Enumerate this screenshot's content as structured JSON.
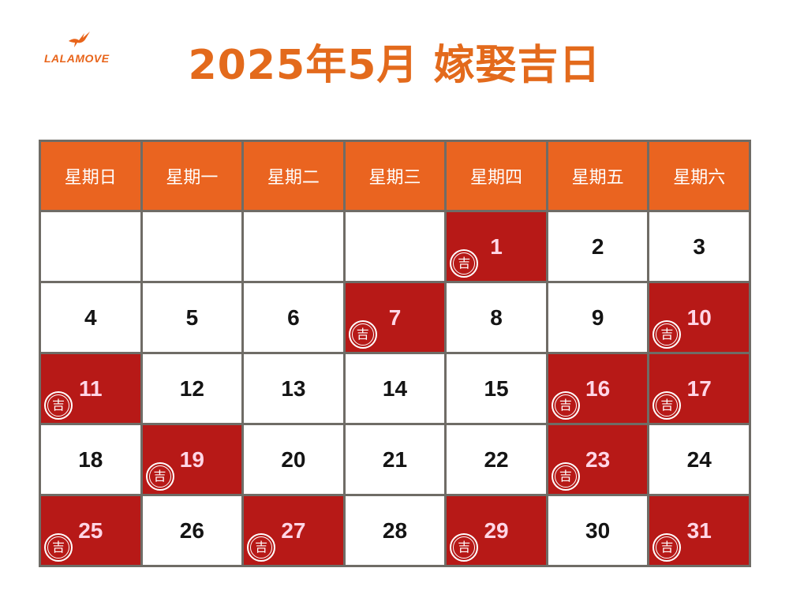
{
  "brand": {
    "name": "LALAMOVE",
    "logo_icon": "hummingbird-icon",
    "color": "#e8641a"
  },
  "title": "2025年5月 嫁娶吉日",
  "colors": {
    "title": "#e36a1c",
    "header_bg": "#ea6420",
    "auspicious_bg": "#b71917",
    "grid_line": "#6f6c66"
  },
  "weekdays": [
    "星期日",
    "星期一",
    "星期二",
    "星期三",
    "星期四",
    "星期五",
    "星期六"
  ],
  "stamp_label": "吉",
  "start_weekday_index": 4,
  "days": [
    {
      "date": "1",
      "auspicious": true
    },
    {
      "date": "2",
      "auspicious": false
    },
    {
      "date": "3",
      "auspicious": false
    },
    {
      "date": "4",
      "auspicious": false
    },
    {
      "date": "5",
      "auspicious": false
    },
    {
      "date": "6",
      "auspicious": false
    },
    {
      "date": "7",
      "auspicious": true
    },
    {
      "date": "8",
      "auspicious": false
    },
    {
      "date": "9",
      "auspicious": false
    },
    {
      "date": "10",
      "auspicious": true
    },
    {
      "date": "11",
      "auspicious": true
    },
    {
      "date": "12",
      "auspicious": false
    },
    {
      "date": "13",
      "auspicious": false
    },
    {
      "date": "14",
      "auspicious": false
    },
    {
      "date": "15",
      "auspicious": false
    },
    {
      "date": "16",
      "auspicious": true
    },
    {
      "date": "17",
      "auspicious": true
    },
    {
      "date": "18",
      "auspicious": false
    },
    {
      "date": "19",
      "auspicious": true
    },
    {
      "date": "20",
      "auspicious": false
    },
    {
      "date": "21",
      "auspicious": false
    },
    {
      "date": "22",
      "auspicious": false
    },
    {
      "date": "23",
      "auspicious": true
    },
    {
      "date": "24",
      "auspicious": false
    },
    {
      "date": "25",
      "auspicious": true
    },
    {
      "date": "26",
      "auspicious": false
    },
    {
      "date": "27",
      "auspicious": true
    },
    {
      "date": "28",
      "auspicious": false
    },
    {
      "date": "29",
      "auspicious": true
    },
    {
      "date": "30",
      "auspicious": false
    },
    {
      "date": "31",
      "auspicious": true
    }
  ]
}
